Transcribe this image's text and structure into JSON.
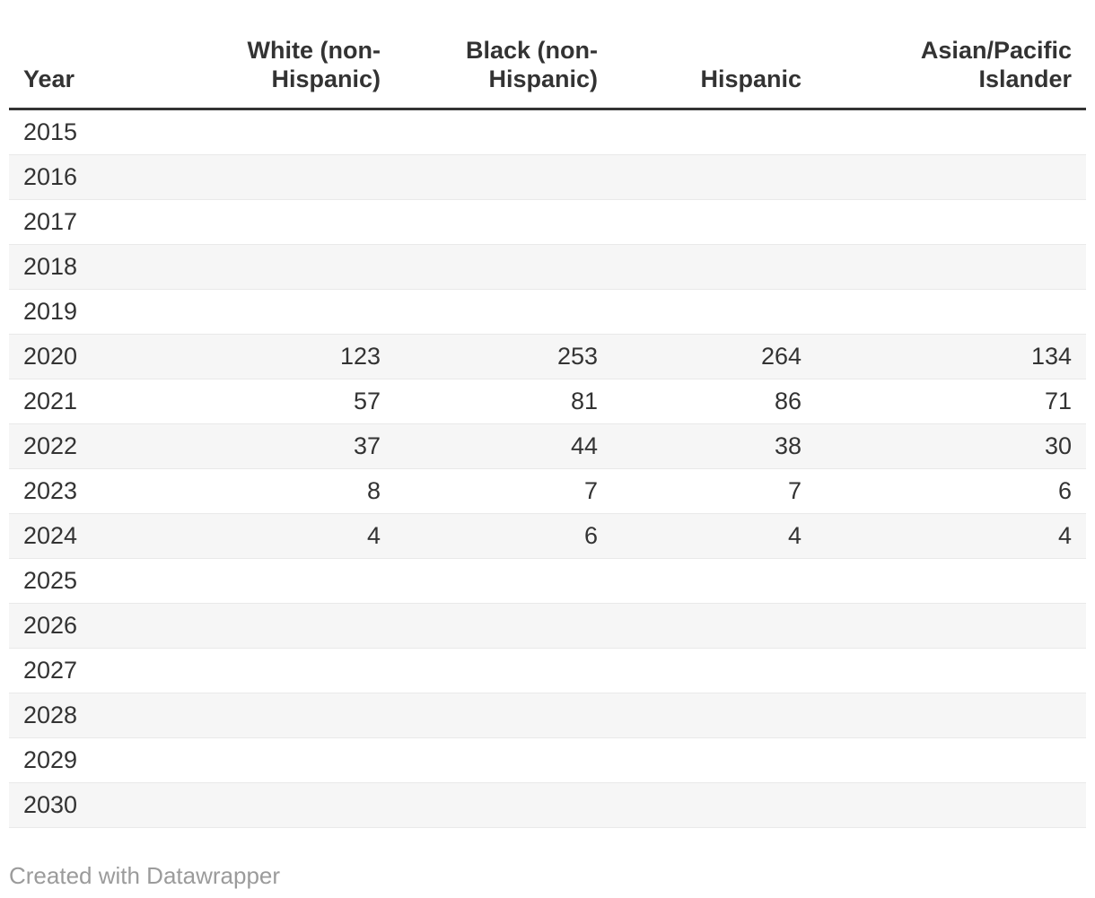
{
  "chart_data": {
    "type": "table",
    "columns": [
      "Year",
      "White (non-\nHispanic)",
      "Black (non-\nHispanic)",
      "Hispanic",
      "Asian/Pacific\nIslander"
    ],
    "rows": [
      [
        "2015",
        "",
        "",
        "",
        ""
      ],
      [
        "2016",
        "",
        "",
        "",
        ""
      ],
      [
        "2017",
        "",
        "",
        "",
        ""
      ],
      [
        "2018",
        "",
        "",
        "",
        ""
      ],
      [
        "2019",
        "",
        "",
        "",
        ""
      ],
      [
        "2020",
        "123",
        "253",
        "264",
        "134"
      ],
      [
        "2021",
        "57",
        "81",
        "86",
        "71"
      ],
      [
        "2022",
        "37",
        "44",
        "38",
        "30"
      ],
      [
        "2023",
        "8",
        "7",
        "7",
        "6"
      ],
      [
        "2024",
        "4",
        "6",
        "4",
        "4"
      ],
      [
        "2025",
        "",
        "",
        "",
        ""
      ],
      [
        "2026",
        "",
        "",
        "",
        ""
      ],
      [
        "2027",
        "",
        "",
        "",
        ""
      ],
      [
        "2028",
        "",
        "",
        "",
        ""
      ],
      [
        "2029",
        "",
        "",
        "",
        ""
      ],
      [
        "2030",
        "",
        "",
        "",
        ""
      ]
    ],
    "title": "",
    "legend_position": "none",
    "grid": "row-separators",
    "stripe_color": "#f6f6f6",
    "header_rule_color": "#333333",
    "row_separator_color": "#e9e9e9",
    "text_color": "#333333"
  },
  "footer": {
    "credit": "Created with Datawrapper"
  }
}
